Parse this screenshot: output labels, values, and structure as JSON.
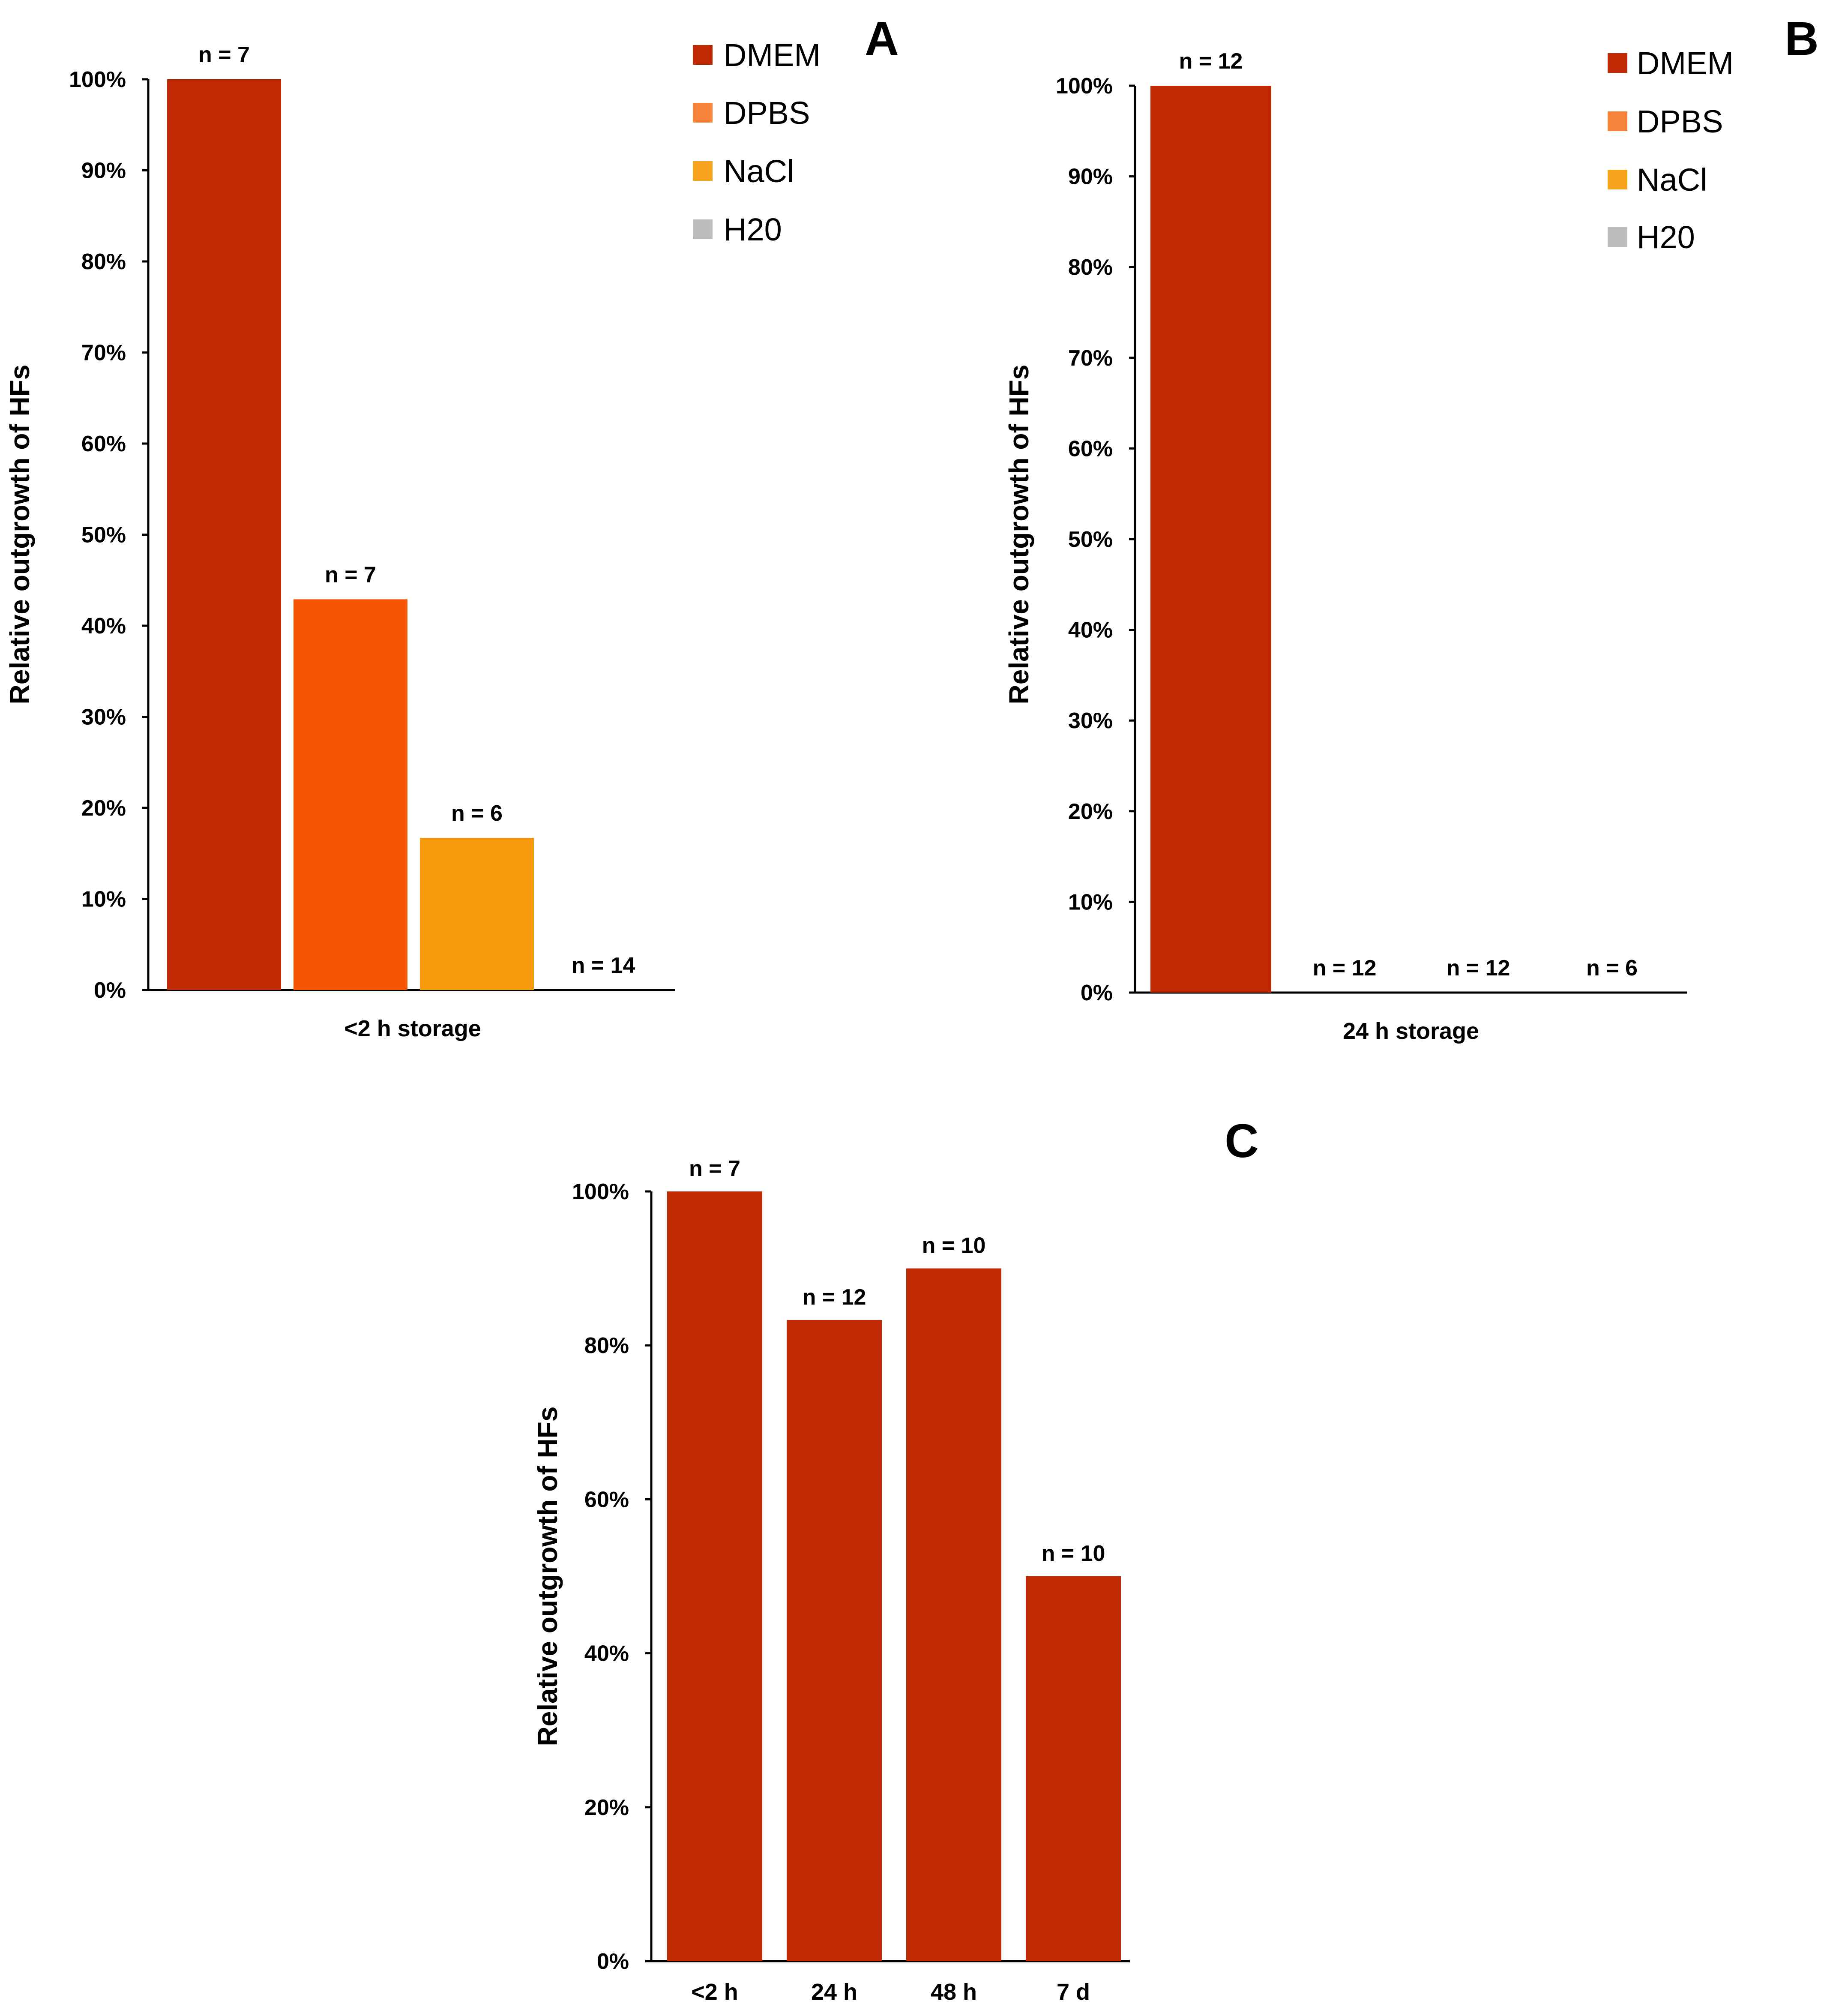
{
  "colors": {
    "DMEM": "#BF2A04",
    "DPBS": "#F45503",
    "NaCl": "#F79A0E",
    "H20": "#BDBDBD",
    "legend_DPBS": "#F7833A",
    "legend_NaCl": "#F5A31C",
    "legend_H20": "#BDBDBD"
  },
  "chart_data": [
    {
      "panel": "A",
      "type": "bar",
      "ylabel": "Relative outgrowth of HFs",
      "xlabel": "<2 h storage",
      "ylim": [
        0,
        100
      ],
      "yticks": [
        "0%",
        "10%",
        "20%",
        "30%",
        "40%",
        "50%",
        "60%",
        "70%",
        "80%",
        "90%",
        "100%"
      ],
      "legend": [
        "DMEM",
        "DPBS",
        "NaCl",
        "H20"
      ],
      "legend_position": "top-right",
      "series": [
        {
          "name": "DMEM",
          "value": 100,
          "n_label": "n = 7"
        },
        {
          "name": "DPBS",
          "value": 42.9,
          "n_label": "n = 7"
        },
        {
          "name": "NaCl",
          "value": 16.7,
          "n_label": "n = 6"
        },
        {
          "name": "H20",
          "value": 0,
          "n_label": "n = 14"
        }
      ]
    },
    {
      "panel": "B",
      "type": "bar",
      "ylabel": "Relative outgrowth of HFs",
      "xlabel": "24 h storage",
      "ylim": [
        0,
        100
      ],
      "yticks": [
        "0%",
        "10%",
        "20%",
        "30%",
        "40%",
        "50%",
        "60%",
        "70%",
        "80%",
        "90%",
        "100%"
      ],
      "legend": [
        "DMEM",
        "DPBS",
        "NaCl",
        "H20"
      ],
      "legend_position": "top-right",
      "series": [
        {
          "name": "DMEM",
          "value": 100,
          "n_label": "n = 12"
        },
        {
          "name": "DPBS",
          "value": 0,
          "n_label": "n = 12"
        },
        {
          "name": "NaCl",
          "value": 0,
          "n_label": "n = 12"
        },
        {
          "name": "H20",
          "value": 0,
          "n_label": "n = 6"
        }
      ]
    },
    {
      "panel": "C",
      "type": "bar",
      "ylabel": "Relative outgrowth of HFs",
      "xlabel": "",
      "ylim": [
        0,
        100
      ],
      "yticks": [
        "0%",
        "20%",
        "40%",
        "60%",
        "80%",
        "100%"
      ],
      "categories": [
        "<2 h",
        "24 h",
        "48 h",
        "7 d"
      ],
      "values": [
        100,
        83.3,
        90,
        50
      ],
      "n_labels": [
        "n = 7",
        "n = 12",
        "n = 10",
        "n = 10"
      ]
    }
  ]
}
